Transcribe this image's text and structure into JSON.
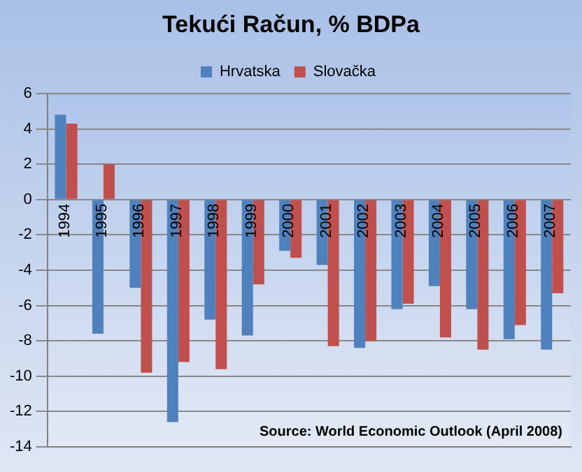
{
  "chart_data": {
    "type": "bar",
    "title": "Tekući Račun, % BDPa",
    "categories": [
      "1994",
      "1995",
      "1996",
      "1997",
      "1998",
      "1999",
      "2000",
      "2001",
      "2002",
      "2003",
      "2004",
      "2005",
      "2006",
      "2007"
    ],
    "series": [
      {
        "name": "Hrvatska",
        "color": "#4f81bd",
        "values": [
          4.8,
          -7.6,
          -5.0,
          -12.6,
          -6.8,
          -7.7,
          -2.9,
          -3.7,
          -8.4,
          -6.2,
          -4.9,
          -6.2,
          -7.9,
          -8.5
        ]
      },
      {
        "name": "Slovačka",
        "color": "#c0504d",
        "values": [
          4.3,
          2.0,
          -9.8,
          -9.2,
          -9.6,
          -4.8,
          -3.3,
          -8.3,
          -8.0,
          -5.9,
          -7.8,
          -8.5,
          -7.1,
          -5.3
        ]
      }
    ],
    "ylim": [
      -14,
      6
    ],
    "yticks": [
      -14,
      -12,
      -10,
      -8,
      -6,
      -4,
      -2,
      0,
      2,
      4,
      6
    ],
    "grid": "y",
    "legend": "top",
    "annotations": [
      "Source: World Economic Outlook (April 2008)"
    ]
  }
}
